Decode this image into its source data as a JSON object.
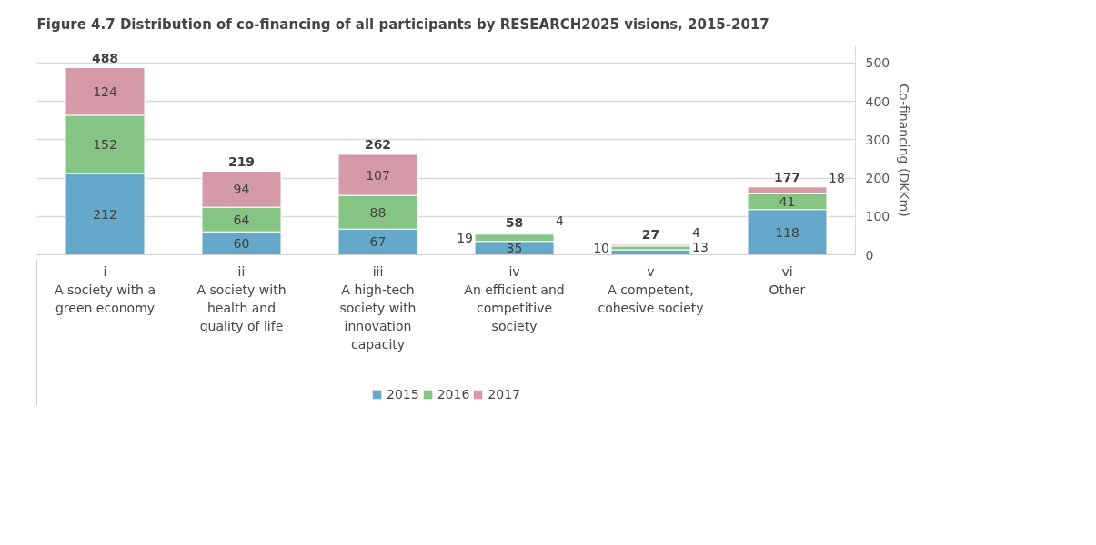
{
  "chart_data": {
    "type": "bar",
    "stacked": true,
    "title": "Figure 4.7 Distribution of co-financing of all participants by RESEARCH2025 visions, 2015-2017",
    "categories": [
      "i\nA society with a\ngreen economy",
      "ii\nA society with\nhealth and\nquality of life",
      "iii\nA high-tech\nsociety with\ninnovation\ncapacity",
      "iv\nAn efficient and\ncompetitive\nsociety",
      "v\nA competent,\ncohesive society",
      "vi\nOther"
    ],
    "series": [
      {
        "name": "2015",
        "color": "#65a8c9",
        "values": [
          212,
          60,
          67,
          35,
          13,
          118
        ]
      },
      {
        "name": "2016",
        "color": "#86c484",
        "values": [
          152,
          64,
          88,
          19,
          10,
          41
        ]
      },
      {
        "name": "2017",
        "color": "#d49aaa",
        "values": [
          124,
          94,
          107,
          4,
          4,
          18
        ]
      }
    ],
    "totals": [
      "488",
      "219",
      "262",
      "58",
      "27",
      "177"
    ],
    "data_labels": true,
    "y2label": "Co-financing (DKKm)",
    "y2lim": [
      0,
      545
    ],
    "y2ticks": [
      0,
      100,
      200,
      300,
      400,
      500
    ],
    "grid": "y",
    "legend": "bottom"
  }
}
